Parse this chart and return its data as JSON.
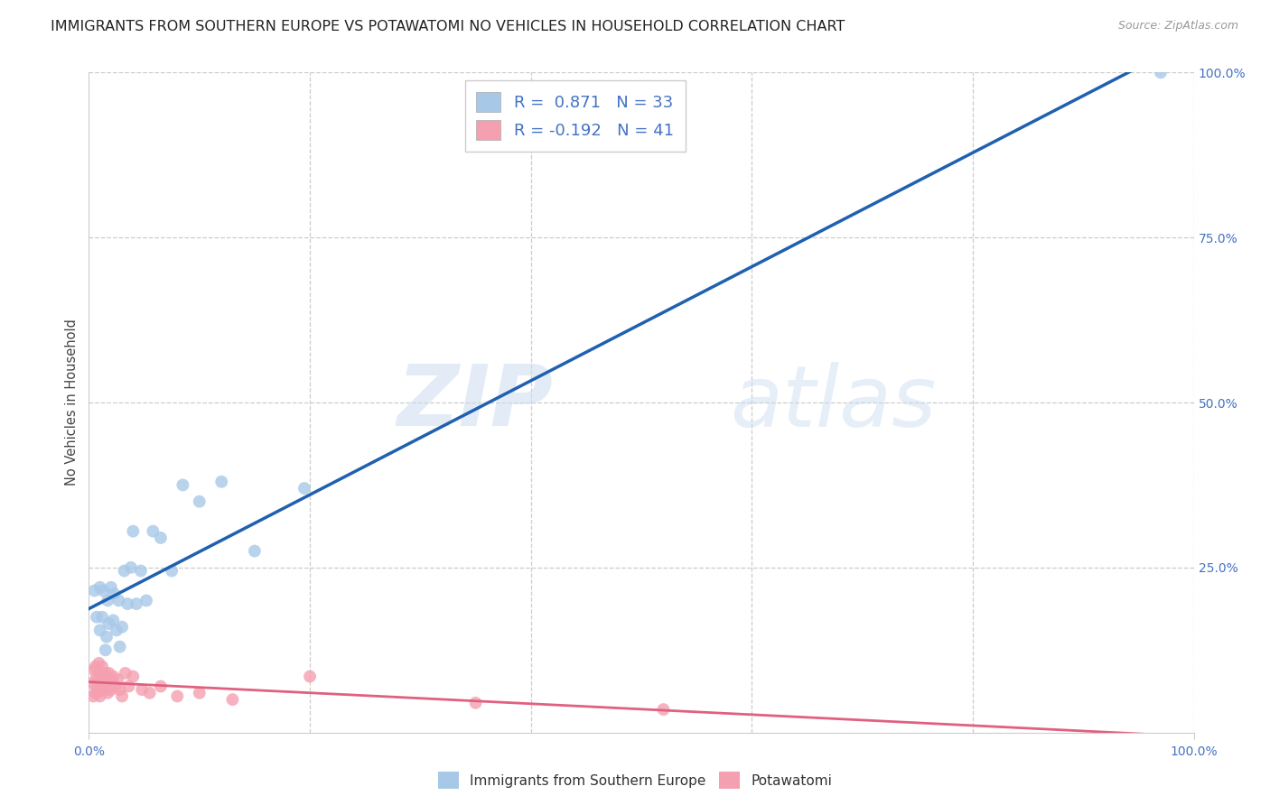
{
  "title": "IMMIGRANTS FROM SOUTHERN EUROPE VS POTAWATOMI NO VEHICLES IN HOUSEHOLD CORRELATION CHART",
  "source": "Source: ZipAtlas.com",
  "ylabel": "No Vehicles in Household",
  "xlim": [
    0,
    1.0
  ],
  "ylim": [
    0,
    1.0
  ],
  "ytick_positions_right": [
    0.25,
    0.5,
    0.75,
    1.0
  ],
  "ytick_labels_right": [
    "25.0%",
    "50.0%",
    "75.0%",
    "100.0%"
  ],
  "blue_R": 0.871,
  "blue_N": 33,
  "pink_R": -0.192,
  "pink_N": 41,
  "blue_color": "#a8c8e8",
  "pink_color": "#f4a0b0",
  "blue_line_color": "#2060b0",
  "pink_line_color": "#e06080",
  "watermark_zip": "ZIP",
  "watermark_atlas": "atlas",
  "grid_color": "#cccccc",
  "background_color": "#ffffff",
  "title_color": "#222222",
  "axis_label_color": "#444444",
  "tick_color": "#4472c4",
  "legend_fontsize": 13,
  "title_fontsize": 11.5,
  "marker_size": 100,
  "blue_points_x": [
    0.005,
    0.007,
    0.01,
    0.01,
    0.012,
    0.013,
    0.015,
    0.016,
    0.017,
    0.018,
    0.02,
    0.022,
    0.023,
    0.025,
    0.027,
    0.028,
    0.03,
    0.032,
    0.035,
    0.038,
    0.04,
    0.043,
    0.047,
    0.052,
    0.058,
    0.065,
    0.075,
    0.085,
    0.1,
    0.12,
    0.15,
    0.195,
    0.97
  ],
  "blue_points_y": [
    0.215,
    0.175,
    0.22,
    0.155,
    0.175,
    0.215,
    0.125,
    0.145,
    0.2,
    0.165,
    0.22,
    0.17,
    0.21,
    0.155,
    0.2,
    0.13,
    0.16,
    0.245,
    0.195,
    0.25,
    0.305,
    0.195,
    0.245,
    0.2,
    0.305,
    0.295,
    0.245,
    0.375,
    0.35,
    0.38,
    0.275,
    0.37,
    1.0
  ],
  "pink_points_x": [
    0.003,
    0.004,
    0.005,
    0.006,
    0.006,
    0.007,
    0.007,
    0.008,
    0.009,
    0.009,
    0.01,
    0.01,
    0.011,
    0.012,
    0.012,
    0.013,
    0.014,
    0.015,
    0.015,
    0.016,
    0.017,
    0.018,
    0.019,
    0.02,
    0.022,
    0.024,
    0.026,
    0.028,
    0.03,
    0.033,
    0.036,
    0.04,
    0.048,
    0.055,
    0.065,
    0.08,
    0.1,
    0.13,
    0.2,
    0.35,
    0.52
  ],
  "pink_points_y": [
    0.075,
    0.055,
    0.095,
    0.06,
    0.1,
    0.07,
    0.085,
    0.06,
    0.08,
    0.105,
    0.055,
    0.09,
    0.065,
    0.075,
    0.1,
    0.07,
    0.085,
    0.065,
    0.09,
    0.075,
    0.06,
    0.09,
    0.08,
    0.065,
    0.085,
    0.07,
    0.08,
    0.065,
    0.055,
    0.09,
    0.07,
    0.085,
    0.065,
    0.06,
    0.07,
    0.055,
    0.06,
    0.05,
    0.085,
    0.045,
    0.035
  ]
}
